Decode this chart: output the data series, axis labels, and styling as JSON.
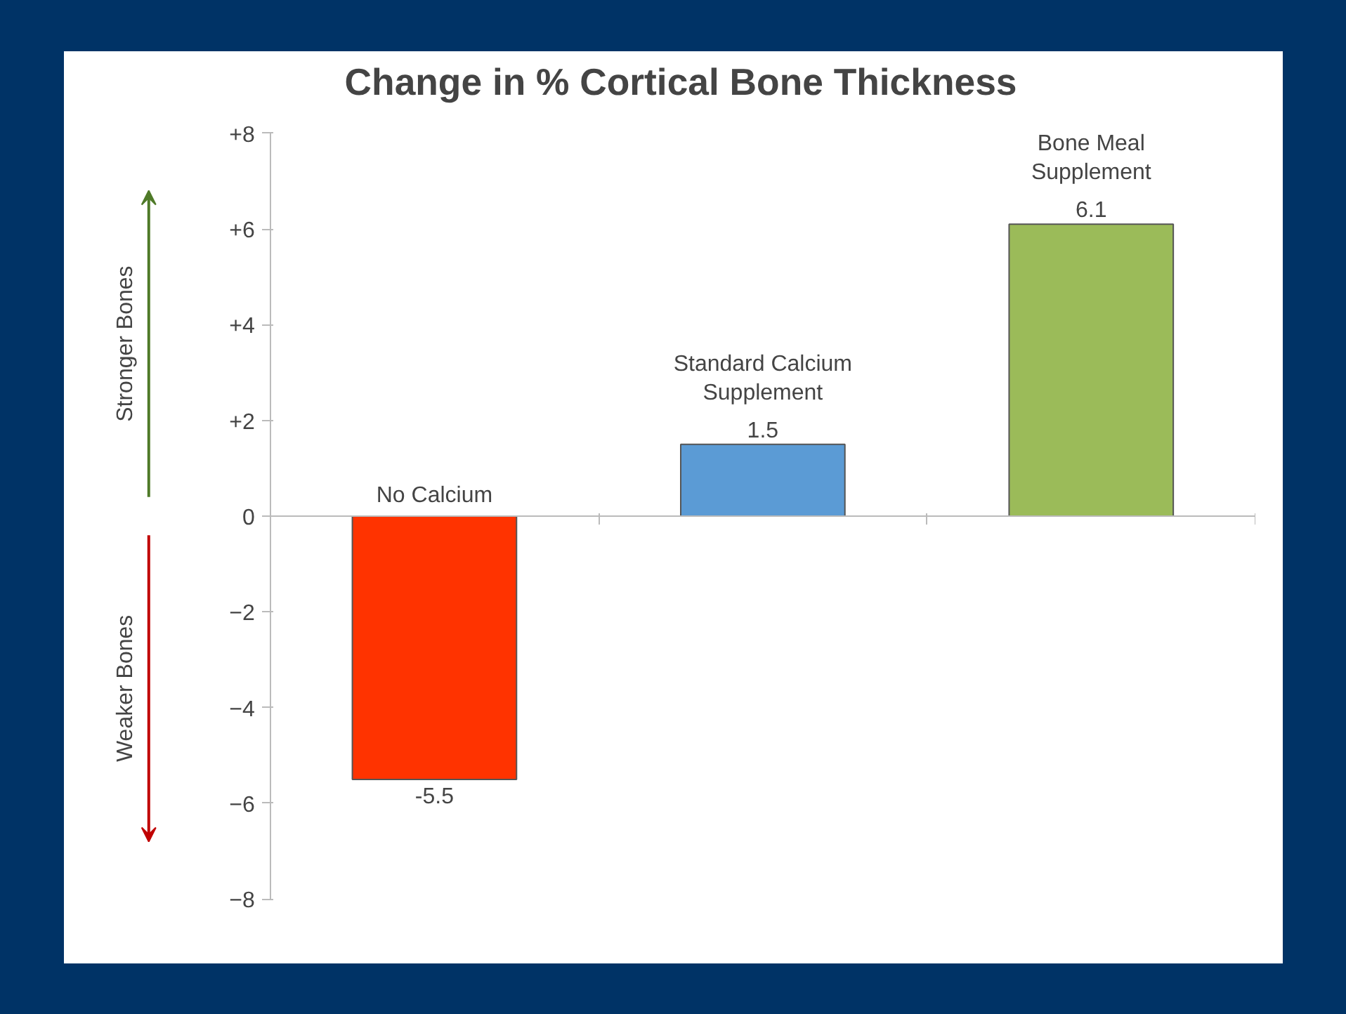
{
  "chart_data": {
    "type": "bar",
    "title": "Change in % Cortical Bone Thickness",
    "categories": [
      "No Calcium",
      "Standard Calcium Supplement",
      "Bone Meal Supplement"
    ],
    "values": [
      -5.5,
      1.5,
      6.1
    ],
    "colors": [
      "#ff3300",
      "#5b9bd5",
      "#9bbb59"
    ],
    "ylim": [
      -8,
      8
    ],
    "yticks": [
      {
        "value": 8,
        "label": "+8"
      },
      {
        "value": 6,
        "label": "+6"
      },
      {
        "value": 4,
        "label": "+4"
      },
      {
        "value": 2,
        "label": "+2"
      },
      0,
      -2,
      -4,
      -6,
      -8
    ],
    "data_labels": true,
    "tick_labels": "y",
    "annotations": [
      "Stronger Bones",
      "Weaker Bones"
    ]
  }
}
